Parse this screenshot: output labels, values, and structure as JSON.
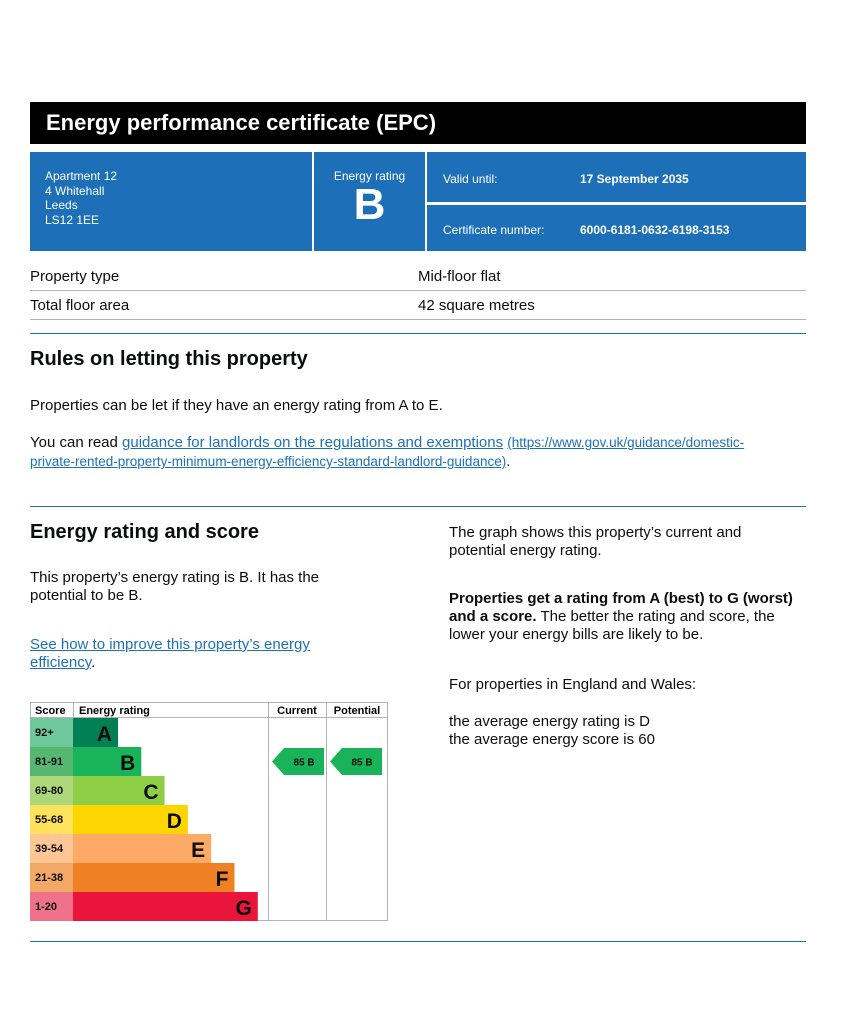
{
  "header": {
    "title": "Energy performance certificate (EPC)"
  },
  "address": [
    "Apartment 12",
    "4 Whitehall",
    "Leeds",
    "LS12 1EE"
  ],
  "rating_box": {
    "label": "Energy rating",
    "value": "B"
  },
  "valid": {
    "label": "Valid until:",
    "value": "17 September 2035"
  },
  "certificate": {
    "label": "Certificate number:",
    "value": "6000-6181-0632-6198-3153"
  },
  "property": [
    {
      "label": "Property type",
      "value": "Mid-floor flat"
    },
    {
      "label": "Total floor area",
      "value": "42 square metres"
    }
  ],
  "letting": {
    "heading": "Rules on letting this property",
    "p1": "Properties can be let if they have an energy rating from A to E.",
    "p2_prefix": "You can read ",
    "link_text": "guidance for landlords on the regulations and exemptions",
    "link_url_line1": "(https://www.gov.uk/guidance/domestic-",
    "link_url_line2": "private-rented-property-minimum-energy-efficiency-standard-landlord-guidance)",
    "p2_suffix": "."
  },
  "score_section": {
    "heading": "Energy rating and score",
    "p1_line1": "This property’s energy rating is B. It has the",
    "p1_line2": "potential to be B.",
    "link_line1": "See how to improve this property’s energy",
    "link_line2": "efficiency",
    "link_suffix": ".",
    "right_p1_line1": "The graph shows this property’s current and",
    "right_p1_line2": "potential energy rating.",
    "right_p2_bold_line1": "Properties get a rating from A (best) to G (worst)",
    "right_p2_bold_line2": "and a score.",
    "right_p2_rest_line2": " The better the rating and score, the",
    "right_p2_line3": "lower your energy bills are likely to be.",
    "right_p3": "For properties in England and Wales:",
    "right_p4_line1": "the average energy rating is D",
    "right_p4_line2": "the average energy score is 60"
  },
  "chart_data": {
    "type": "table",
    "headers": {
      "score": "Score",
      "rating": "Energy rating",
      "current": "Current",
      "potential": "Potential"
    },
    "bands": [
      {
        "range": "92+",
        "letter": "A",
        "color": "#008054",
        "score_color": "#6ec89c"
      },
      {
        "range": "81-91",
        "letter": "B",
        "color": "#19b459",
        "score_color": "#56b870"
      },
      {
        "range": "69-80",
        "letter": "C",
        "color": "#8dce46",
        "score_color": "#aed67b"
      },
      {
        "range": "55-68",
        "letter": "D",
        "color": "#ffd500",
        "score_color": "#ffe25c"
      },
      {
        "range": "39-54",
        "letter": "E",
        "color": "#fcaa65",
        "score_color": "#fdc694"
      },
      {
        "range": "21-38",
        "letter": "F",
        "color": "#ef8023",
        "score_color": "#f4a865"
      },
      {
        "range": "1-20",
        "letter": "G",
        "color": "#e9153b",
        "score_color": "#f0718a"
      }
    ],
    "current": {
      "score": 85,
      "letter": "B",
      "label": "85 B"
    },
    "potential": {
      "score": 85,
      "letter": "B",
      "label": "85 B"
    }
  }
}
